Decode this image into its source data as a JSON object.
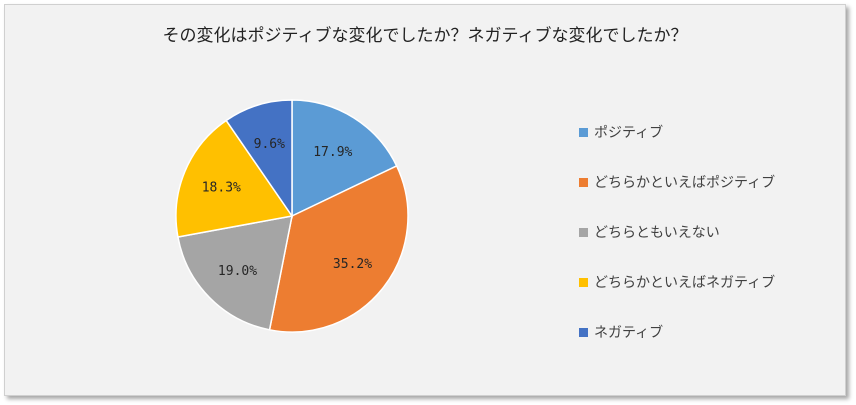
{
  "chart_data": {
    "type": "pie",
    "title": "その変化はポジティブな変化でしたか？ネガティブな変化でしたか？",
    "categories": [
      "ポジティブ",
      "どちらかといえばポジティブ",
      "どちらともいえない",
      "どちらかといえばネガティブ",
      "ネガティブ"
    ],
    "values": [
      17.9,
      35.2,
      19.0,
      18.3,
      9.6
    ],
    "data_labels": [
      "17.9%",
      "35.2%",
      "19.0%",
      "18.3%",
      "9.6%"
    ],
    "colors": [
      "#5b9bd5",
      "#ed7d31",
      "#a5a5a5",
      "#ffc000",
      "#4472c4"
    ],
    "start_angle": "12 o'clock",
    "direction": "clockwise",
    "legend_position": "right"
  }
}
